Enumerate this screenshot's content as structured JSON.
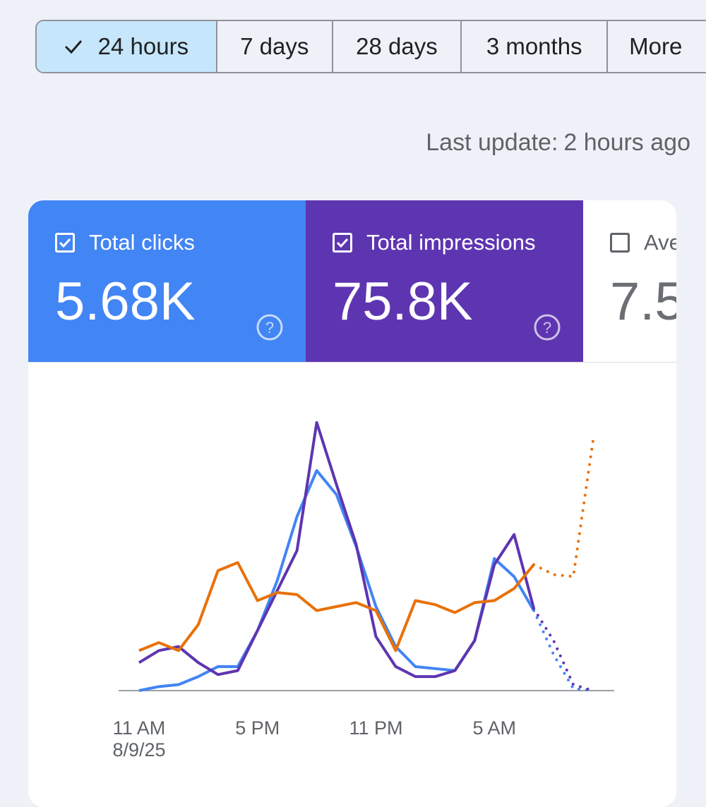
{
  "range_selector": {
    "options": [
      "24 hours",
      "7 days",
      "28 days",
      "3 months",
      "More"
    ],
    "selected": "24 hours"
  },
  "last_update": {
    "label": "Last update:",
    "value": "2 hours ago"
  },
  "metrics": [
    {
      "label": "Total clicks",
      "value": "5.68K",
      "checked": true,
      "color": "#4285f4"
    },
    {
      "label": "Total impressions",
      "value": "75.8K",
      "checked": true,
      "color": "#5e35b1"
    },
    {
      "label": "Ave",
      "value": "7.5",
      "checked": false,
      "color": "#e8710a"
    }
  ],
  "chart_data": {
    "type": "line",
    "x_tick_labels": [
      {
        "time": "11 AM",
        "date": "8/9/25"
      },
      {
        "time": "5 PM",
        "date": ""
      },
      {
        "time": "11 PM",
        "date": ""
      },
      {
        "time": "5 AM",
        "date": ""
      }
    ],
    "x_hours": [
      11,
      12,
      13,
      14,
      15,
      16,
      17,
      18,
      19,
      20,
      21,
      22,
      23,
      24,
      25,
      26,
      27,
      28,
      29,
      30,
      31,
      32,
      33,
      34
    ],
    "y_axis_labels_shown": false,
    "series": [
      {
        "name": "Total clicks",
        "color": "#4285f4",
        "solid_until_index": 20,
        "values": [
          0,
          2,
          3,
          7,
          12,
          12,
          30,
          55,
          87,
          110,
          98,
          72,
          42,
          22,
          12,
          11,
          10,
          25,
          66,
          57,
          40,
          18,
          1,
          0
        ]
      },
      {
        "name": "Total impressions",
        "color": "#5e35b1",
        "solid_until_index": 20,
        "values": [
          14,
          20,
          22,
          14,
          8,
          10,
          30,
          50,
          70,
          134,
          103,
          73,
          27,
          12,
          7,
          7,
          10,
          25,
          63,
          78,
          41,
          25,
          3,
          0
        ]
      },
      {
        "name": "Ave",
        "color": "#e8710a",
        "solid_until_index": 20,
        "values": [
          20,
          24,
          20,
          33,
          60,
          64,
          45,
          49,
          48,
          40,
          42,
          44,
          40,
          20,
          45,
          43,
          39,
          44,
          45,
          51,
          63,
          58,
          57,
          125
        ]
      }
    ]
  }
}
